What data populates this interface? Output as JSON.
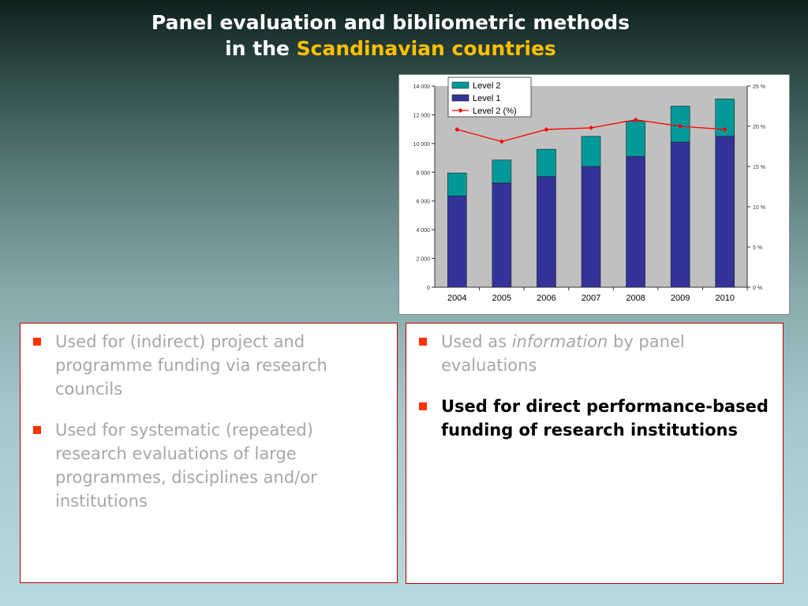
{
  "slide": {
    "title_line1": "Panel evaluation and bibliometric methods",
    "title_line2_prefix": "in the",
    "title_line2_highlight": "Scandinavian countries",
    "colors": {
      "title": "#ffffff",
      "highlight": "#ffc000",
      "bullet": "#ff3300",
      "panel_border": "#c00000"
    }
  },
  "left_panel": {
    "bullets": [
      "Used for (indirect) project and programme funding via research councils",
      "Used for systematic (repeated) research evaluations of large programmes, disciplines and/or institutions"
    ]
  },
  "right_panel": {
    "bullet1_prefix": "Used as",
    "bullet1_italic": "information",
    "bullet1_suffix": "by panel evaluations",
    "bullet2": "Used for direct performance-based funding of research institutions"
  },
  "chart_data": {
    "type": "bar",
    "stacked": true,
    "categories": [
      "2004",
      "2005",
      "2006",
      "2007",
      "2008",
      "2009",
      "2010"
    ],
    "series": [
      {
        "name": "Level 1",
        "type": "bar",
        "color": "#333399",
        "values": [
          6350,
          7250,
          7700,
          8400,
          9100,
          10100,
          10500
        ]
      },
      {
        "name": "Level 2",
        "type": "bar",
        "color": "#009999",
        "values": [
          1600,
          1600,
          1900,
          2100,
          2450,
          2500,
          2600
        ]
      },
      {
        "name": "Level 2 (%)",
        "type": "line",
        "axis": "right",
        "color": "#ff0000",
        "values": [
          19.6,
          18.1,
          19.6,
          19.8,
          20.8,
          20.0,
          19.6
        ]
      }
    ],
    "y_left": {
      "ylim": [
        0,
        14000
      ],
      "ticks": [
        "0",
        "2 000",
        "4 000",
        "6 000",
        "8 000",
        "10 000",
        "12 000",
        "14 000"
      ]
    },
    "y_right": {
      "ylim": [
        0,
        25
      ],
      "ticks": [
        "0 %",
        "5 %",
        "10 %",
        "15 %",
        "20 %",
        "25 %"
      ]
    },
    "plot_background": "#c0c0c0",
    "legend_position": "top-left",
    "legend_order": [
      "Level 2",
      "Level 1",
      "Level 2 (%)"
    ]
  }
}
